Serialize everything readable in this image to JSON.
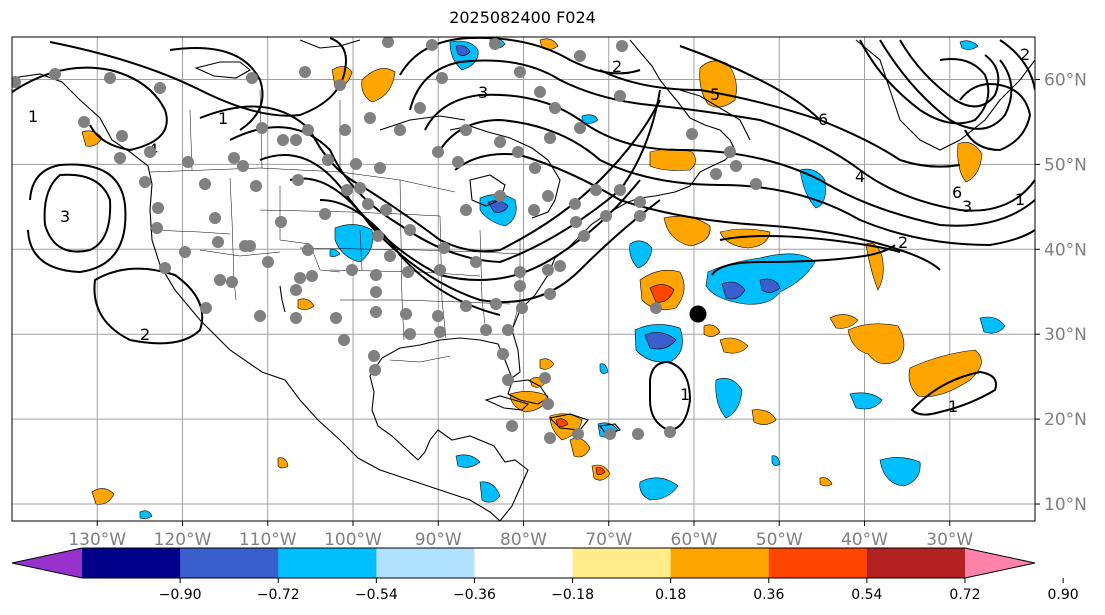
{
  "title": "2025082400 F024",
  "map": {
    "lon_range": [
      -140,
      -20
    ],
    "lat_range": [
      8,
      65
    ],
    "lon_ticks": [
      "130°W",
      "120°W",
      "110°W",
      "100°W",
      "90°W",
      "80°W",
      "70°W",
      "60°W",
      "50°W",
      "40°W",
      "30°W"
    ],
    "lat_ticks": [
      "60°N",
      "50°N",
      "40°N",
      "30°N",
      "20°N",
      "10°N"
    ],
    "grid": true,
    "contour_labels": [
      "1",
      "2",
      "3",
      "4",
      "5",
      "6",
      "1",
      "2",
      "3",
      "6",
      "1",
      "2",
      "2",
      "1",
      "1",
      "3",
      "4"
    ]
  },
  "colorbar": {
    "ticks": [
      "−0.90",
      "−0.72",
      "−0.54",
      "−0.36",
      "−0.18",
      "0.18",
      "0.36",
      "0.54",
      "0.72",
      "0.90"
    ],
    "colors": [
      "#9932CC",
      "#00008B",
      "#3A5FCD",
      "#00BFFF",
      "#B0E2FF",
      "#FFFFFF",
      "#FFEC8B",
      "#FFA500",
      "#FF4500",
      "#B22222",
      "#FF82AB"
    ]
  }
}
